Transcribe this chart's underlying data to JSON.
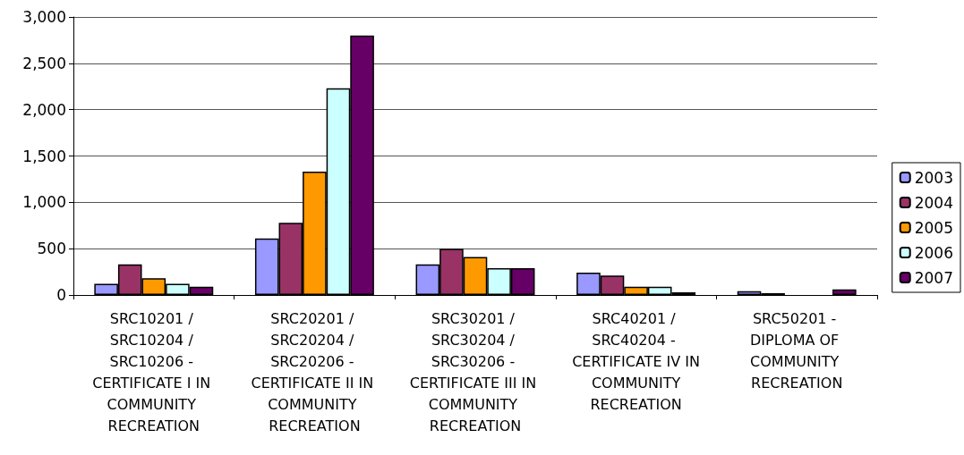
{
  "chart_data": {
    "type": "bar",
    "categories": [
      "SRC10201 / SRC10204 / SRC10206 - CERTIFICATE I IN COMMUNITY RECREATION",
      "SRC20201 / SRC20204 / SRC20206 - CERTIFICATE II IN COMMUNITY RECREATION",
      "SRC30201 / SRC30204 / SRC30206 - CERTIFICATE III IN COMMUNITY RECREATION",
      "SRC40201 / SRC40204 - CERTIFICATE IV IN COMMUNITY RECREATION",
      "SRC50201 - DIPLOMA OF COMMUNITY RECREATION"
    ],
    "series": [
      {
        "name": "2003",
        "color": "#9999ff",
        "values": [
          120,
          610,
          330,
          240,
          40
        ]
      },
      {
        "name": "2004",
        "color": "#993366",
        "values": [
          330,
          780,
          500,
          210,
          20
        ]
      },
      {
        "name": "2005",
        "color": "#ff9900",
        "values": [
          180,
          1330,
          410,
          90,
          null
        ]
      },
      {
        "name": "2006",
        "color": "#ccffff",
        "values": [
          120,
          2230,
          290,
          90,
          null
        ]
      },
      {
        "name": "2007",
        "color": "#660066",
        "values": [
          90,
          2800,
          290,
          30,
          60
        ]
      }
    ],
    "ylim": [
      0,
      3000
    ],
    "yticks": [
      0,
      500,
      {
        "value": 1000,
        "label": "1,000"
      },
      {
        "value": 1500,
        "label": "1,500"
      },
      {
        "value": 2000,
        "label": "2,000"
      },
      {
        "value": 2500,
        "label": "2,500"
      },
      {
        "value": 3000,
        "label": "3,000"
      }
    ],
    "grid": "y",
    "legend": "right"
  }
}
